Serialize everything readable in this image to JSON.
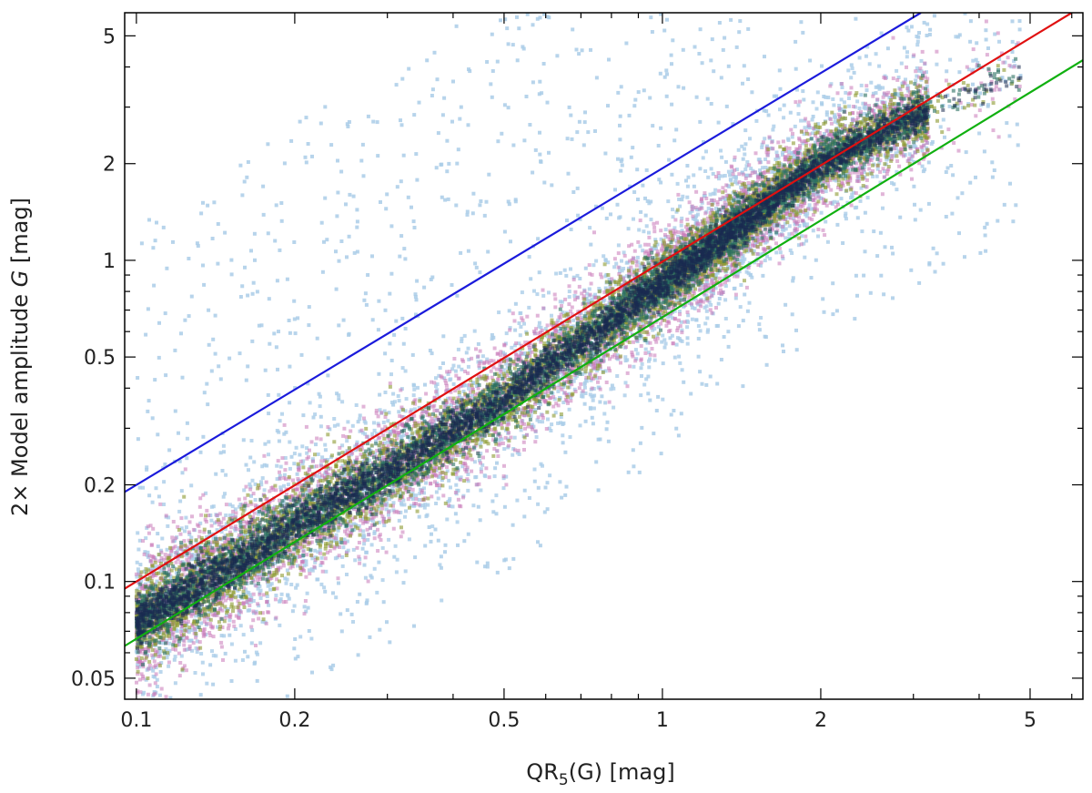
{
  "chart_data": {
    "type": "scatter",
    "title": "",
    "xlabel_main": "QR",
    "xlabel_sub": "5",
    "xlabel_rest": "(G) [mag]",
    "ylabel_main": "2× Model amplitude ",
    "ylabel_italic": "G",
    "ylabel_rest": " [mag]",
    "x_scale": "log",
    "y_scale": "log",
    "xlim": [
      0.095,
      6.3
    ],
    "ylim": [
      0.043,
      5.9
    ],
    "grid": false,
    "x_ticks": [
      0.1,
      0.2,
      0.5,
      1,
      2,
      5
    ],
    "x_tick_labels": [
      "0.1",
      "0.2",
      "0.5",
      "1",
      "2",
      "5"
    ],
    "y_ticks": [
      0.05,
      0.1,
      0.2,
      0.5,
      1,
      2,
      5
    ],
    "y_tick_labels": [
      "0.05",
      "0.1",
      "0.2",
      "0.5",
      "1",
      "2",
      "5"
    ],
    "density_ridge": {
      "x": [
        0.1,
        0.15,
        0.2,
        0.3,
        0.5,
        0.8,
        1.0,
        1.5,
        2.0,
        2.5,
        3.0,
        4.0
      ],
      "y": [
        0.075,
        0.11,
        0.15,
        0.22,
        0.37,
        0.65,
        0.85,
        1.4,
        2.0,
        2.4,
        2.8,
        3.4
      ]
    },
    "series": [
      {
        "name": "",
        "color": "#1a1adb",
        "x": [
          0.095,
          3.1
        ],
        "y": [
          0.19,
          5.9
        ]
      },
      {
        "name": "",
        "color": "#e01010",
        "x": [
          0.095,
          6.0
        ],
        "y": [
          0.095,
          5.9
        ]
      },
      {
        "name": "",
        "color": "#10b010",
        "x": [
          0.095,
          6.3
        ],
        "y": [
          0.063,
          4.2
        ]
      }
    ],
    "colors": {
      "outlier": "#aacde8",
      "halo": "#c878b8",
      "mid": "#8c9a30",
      "inner": "#2a7060",
      "core": "#1a2a50"
    }
  }
}
